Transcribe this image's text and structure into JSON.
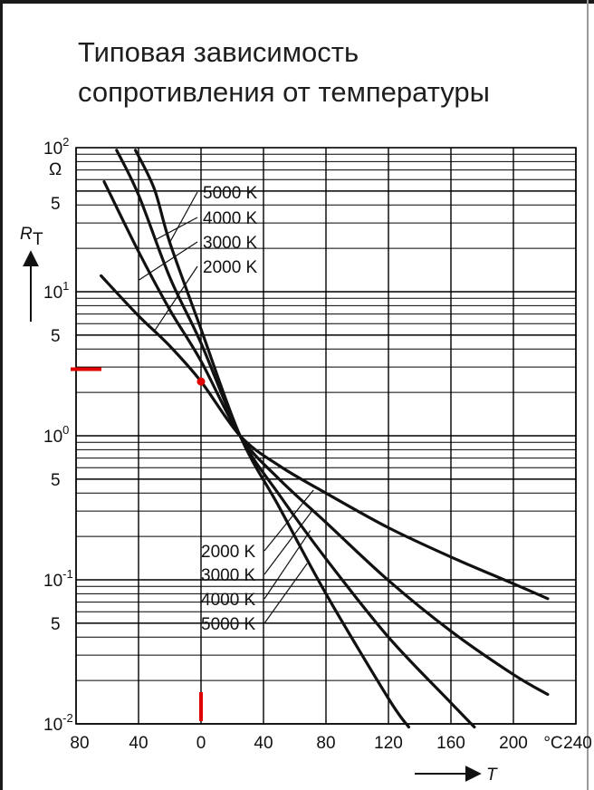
{
  "chart_data": {
    "type": "line",
    "title": "Типовая зависимость",
    "subtitle": "сопротивления от температуры",
    "xlabel": "T",
    "xunit": "°C",
    "ylabel_main": "R",
    "ylabel_sub": "T",
    "yunit": "Ω",
    "xlim": [
      -80,
      240
    ],
    "ylim": [
      0.01,
      100
    ],
    "yscale": "log",
    "grid": true,
    "x_ticks": [
      "80",
      "40",
      "0",
      "40",
      "80",
      "120",
      "160",
      "200",
      "240"
    ],
    "y_ticks": [
      {
        "base": "10",
        "exp": "2"
      },
      {
        "base": "10",
        "exp": "1"
      },
      {
        "base": "10",
        "exp": "0"
      },
      {
        "base": "10",
        "exp": "-1"
      },
      {
        "base": "10",
        "exp": "-2"
      }
    ],
    "y_minor_label": "5",
    "series": [
      {
        "name": "2000 K",
        "x": [
          -64,
          -40,
          -20,
          0,
          25,
          50,
          80,
          120,
          160,
          200,
          222
        ],
        "y": [
          12.9,
          6.8,
          4.2,
          2.38,
          1.0,
          0.62,
          0.4,
          0.23,
          0.144,
          0.094,
          0.074
        ]
      },
      {
        "name": "3000 K",
        "x": [
          -62,
          -40,
          -20,
          0,
          25,
          50,
          80,
          120,
          160,
          200,
          222
        ],
        "y": [
          58,
          19,
          7.5,
          3.3,
          1.0,
          0.5,
          0.25,
          0.099,
          0.044,
          0.022,
          0.016
        ]
      },
      {
        "name": "4000 K",
        "x": [
          -54,
          -40,
          -20,
          0,
          25,
          50,
          80,
          120,
          160,
          175
        ],
        "y": [
          96,
          47,
          12.6,
          4.4,
          1.0,
          0.39,
          0.14,
          0.04,
          0.014,
          0.0095
        ]
      },
      {
        "name": "5000 K",
        "x": [
          -42,
          -30,
          -20,
          0,
          25,
          50,
          80,
          120,
          133
        ],
        "y": [
          96,
          52,
          22,
          5.5,
          1.0,
          0.32,
          0.08,
          0.015,
          0.0095
        ]
      }
    ],
    "legend_upper": [
      "5000 K",
      "4000 K",
      "3000 K",
      "2000 K"
    ],
    "legend_lower": [
      "2000 K",
      "3000 K",
      "4000 K",
      "5000 K"
    ],
    "highlight_point": {
      "x": 0,
      "y": 2.38
    },
    "colors": {
      "curve": "#111111",
      "grid": "#000000",
      "highlight": "#e00000"
    }
  }
}
